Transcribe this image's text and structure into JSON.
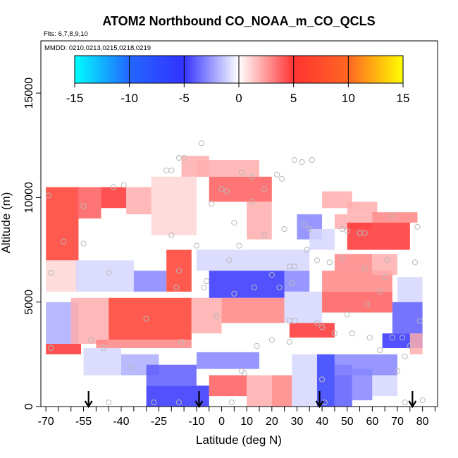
{
  "chart_data": {
    "type": "heatmap",
    "title": "ATOM2 Northbound CO_NOAA_m_CO_QCLS",
    "flights_label": "Flts: 6,7,8,9,10",
    "dates_label": "MMDD: 0210,0213,0215,0218,0219",
    "xlabel": "Latitude (deg N)",
    "ylabel": "Altitude (m)",
    "xlim": [
      -72,
      86
    ],
    "ylim": [
      0,
      17500
    ],
    "x_ticks": [
      -70,
      -55,
      -40,
      -25,
      -10,
      0,
      10,
      20,
      30,
      40,
      50,
      60,
      70,
      80
    ],
    "x_minor_ticks": [
      -65,
      -60,
      -50,
      -45,
      -35,
      -30,
      -20,
      -15,
      -5,
      5,
      15,
      25,
      35,
      45,
      55,
      65,
      75,
      85
    ],
    "y_ticks": [
      0,
      5000,
      10000,
      15000
    ],
    "colorbar": {
      "min": -15,
      "max": 15,
      "ticks": [
        -15,
        -10,
        -5,
        0,
        5,
        10,
        15
      ],
      "colors": [
        "#00ffff",
        "#2266ff",
        "#3333ff",
        "#ffffff",
        "#ff3333",
        "#ff6622",
        "#ffff00"
      ]
    },
    "arrow_latitudes": [
      -53,
      -9,
      39,
      76
    ],
    "observation_points": [
      [
        -69,
        10100
      ],
      [
        -68,
        6400
      ],
      [
        -68,
        2800
      ],
      [
        -63,
        7900
      ],
      [
        -55,
        7800
      ],
      [
        -55,
        9600
      ],
      [
        -52,
        3200
      ],
      [
        -47,
        2800
      ],
      [
        -45,
        6400
      ],
      [
        -43,
        10500
      ],
      [
        -39,
        10600
      ],
      [
        -45,
        200
      ],
      [
        -36,
        1900
      ],
      [
        -30,
        4200
      ],
      [
        -27,
        200
      ],
      [
        -22,
        11300
      ],
      [
        -20,
        11300
      ],
      [
        -20,
        8200
      ],
      [
        -17,
        11900
      ],
      [
        -15,
        11900
      ],
      [
        -18,
        5700
      ],
      [
        -17,
        6500
      ],
      [
        -16,
        3100
      ],
      [
        -17,
        200
      ],
      [
        -8,
        12600
      ],
      [
        -10,
        7700
      ],
      [
        -7,
        5700
      ],
      [
        -6,
        6000
      ],
      [
        -4,
        9700
      ],
      [
        -2,
        4300
      ],
      [
        0,
        10400
      ],
      [
        2,
        10300
      ],
      [
        3,
        7000
      ],
      [
        5,
        8800
      ],
      [
        5,
        5400
      ],
      [
        4,
        200
      ],
      [
        8,
        11200
      ],
      [
        7,
        7700
      ],
      [
        8,
        1700
      ],
      [
        9,
        1600
      ],
      [
        12,
        11000
      ],
      [
        12,
        9800
      ],
      [
        13,
        5700
      ],
      [
        14,
        2900
      ],
      [
        17,
        10400
      ],
      [
        17,
        8200
      ],
      [
        20,
        6300
      ],
      [
        20,
        3200
      ],
      [
        22,
        11100
      ],
      [
        23,
        5700
      ],
      [
        24,
        10900
      ],
      [
        25,
        8500
      ],
      [
        27,
        6700
      ],
      [
        28,
        5900
      ],
      [
        27,
        4100
      ],
      [
        27,
        3100
      ],
      [
        29,
        11800
      ],
      [
        29,
        6700
      ],
      [
        29,
        4100
      ],
      [
        32,
        11700
      ],
      [
        33,
        8700
      ],
      [
        35,
        8500
      ],
      [
        34,
        7500
      ],
      [
        36,
        11800
      ],
      [
        38,
        7000
      ],
      [
        38,
        4000
      ],
      [
        40,
        3800
      ],
      [
        40,
        1300
      ],
      [
        41,
        200
      ],
      [
        43,
        6900
      ],
      [
        45,
        3500
      ],
      [
        48,
        7100
      ],
      [
        48,
        8500
      ],
      [
        50,
        8400
      ],
      [
        50,
        4400
      ],
      [
        52,
        3500
      ],
      [
        55,
        8300
      ],
      [
        57,
        8300
      ],
      [
        57,
        6600
      ],
      [
        58,
        4900
      ],
      [
        59,
        3300
      ],
      [
        63,
        5500
      ],
      [
        63,
        2700
      ],
      [
        65,
        6200
      ],
      [
        66,
        7000
      ],
      [
        68,
        9100
      ],
      [
        68,
        3300
      ],
      [
        70,
        1700
      ],
      [
        72,
        3300
      ],
      [
        73,
        2400
      ],
      [
        73,
        200
      ],
      [
        75,
        2900
      ],
      [
        77,
        6900
      ],
      [
        78,
        8600
      ],
      [
        79,
        4100
      ],
      [
        80,
        300
      ]
    ],
    "cells": [
      {
        "x": [
          -70,
          -57
        ],
        "y": [
          7000,
          10500
        ],
        "v": 6
      },
      {
        "x": [
          -70,
          -57
        ],
        "y": [
          5500,
          7000
        ],
        "v": 1
      },
      {
        "x": [
          -70,
          -57
        ],
        "y": [
          3000,
          5000
        ],
        "v": -2
      },
      {
        "x": [
          -70,
          -56
        ],
        "y": [
          2500,
          3000
        ],
        "v": 5
      },
      {
        "x": [
          -58,
          -48
        ],
        "y": [
          9000,
          10500
        ],
        "v": 4
      },
      {
        "x": [
          -48,
          -38
        ],
        "y": [
          9500,
          10500
        ],
        "v": 5
      },
      {
        "x": [
          -38,
          -28
        ],
        "y": [
          9200,
          10500
        ],
        "v": 2
      },
      {
        "x": [
          -28,
          -10
        ],
        "y": [
          8200,
          11000
        ],
        "v": 1
      },
      {
        "x": [
          -16,
          -5
        ],
        "y": [
          11000,
          12000
        ],
        "v": 2
      },
      {
        "x": [
          -10,
          15
        ],
        "y": [
          11000,
          11800
        ],
        "v": 2
      },
      {
        "x": [
          -5,
          20
        ],
        "y": [
          9800,
          11000
        ],
        "v": 4
      },
      {
        "x": [
          10,
          20
        ],
        "y": [
          8000,
          9800
        ],
        "v": 2
      },
      {
        "x": [
          -58,
          -35
        ],
        "y": [
          5500,
          7000
        ],
        "v": -1
      },
      {
        "x": [
          -35,
          -22
        ],
        "y": [
          5500,
          6500
        ],
        "v": -3
      },
      {
        "x": [
          -22,
          -12
        ],
        "y": [
          5500,
          7500
        ],
        "v": 6
      },
      {
        "x": [
          -60,
          -45
        ],
        "y": [
          3000,
          5200
        ],
        "v": 2
      },
      {
        "x": [
          -45,
          -12
        ],
        "y": [
          3200,
          5200
        ],
        "v": 6
      },
      {
        "x": [
          -12,
          0
        ],
        "y": [
          3500,
          5200
        ],
        "v": 2
      },
      {
        "x": [
          -50,
          -12
        ],
        "y": [
          2800,
          3200
        ],
        "v": 3
      },
      {
        "x": [
          -55,
          -40
        ],
        "y": [
          1500,
          2800
        ],
        "v": -1
      },
      {
        "x": [
          -40,
          -25
        ],
        "y": [
          1500,
          2500
        ],
        "v": -2
      },
      {
        "x": [
          -10,
          35
        ],
        "y": [
          6500,
          7500
        ],
        "v": -1
      },
      {
        "x": [
          -5,
          25
        ],
        "y": [
          5200,
          6500
        ],
        "v": -5
      },
      {
        "x": [
          25,
          35
        ],
        "y": [
          5500,
          6500
        ],
        "v": -3
      },
      {
        "x": [
          0,
          25
        ],
        "y": [
          4000,
          5200
        ],
        "v": 3
      },
      {
        "x": [
          25,
          40
        ],
        "y": [
          4000,
          5500
        ],
        "v": -1
      },
      {
        "x": [
          30,
          40
        ],
        "y": [
          8000,
          9200
        ],
        "v": -3
      },
      {
        "x": [
          35,
          45
        ],
        "y": [
          7500,
          8500
        ],
        "v": -1
      },
      {
        "x": [
          27,
          45
        ],
        "y": [
          3300,
          4000
        ],
        "v": 5
      },
      {
        "x": [
          -30,
          -10
        ],
        "y": [
          1000,
          2000
        ],
        "v": -4
      },
      {
        "x": [
          -10,
          15
        ],
        "y": [
          1800,
          2600
        ],
        "v": -3
      },
      {
        "x": [
          -30,
          -5
        ],
        "y": [
          0,
          1000
        ],
        "v": -5
      },
      {
        "x": [
          -5,
          10
        ],
        "y": [
          500,
          1500
        ],
        "v": 4
      },
      {
        "x": [
          10,
          20
        ],
        "y": [
          0,
          1500
        ],
        "v": 2
      },
      {
        "x": [
          20,
          28
        ],
        "y": [
          0,
          1500
        ],
        "v": 3
      },
      {
        "x": [
          28,
          38
        ],
        "y": [
          0,
          2500
        ],
        "v": -1
      },
      {
        "x": [
          38,
          45
        ],
        "y": [
          0,
          2500
        ],
        "v": -6
      },
      {
        "x": [
          45,
          52
        ],
        "y": [
          0,
          2000
        ],
        "v": -4
      },
      {
        "x": [
          52,
          60
        ],
        "y": [
          300,
          1800
        ],
        "v": -3
      },
      {
        "x": [
          60,
          70
        ],
        "y": [
          500,
          1500
        ],
        "v": -1
      },
      {
        "x": [
          45,
          70
        ],
        "y": [
          1500,
          2500
        ],
        "v": -3
      },
      {
        "x": [
          40,
          68
        ],
        "y": [
          5500,
          6500
        ],
        "v": 3
      },
      {
        "x": [
          40,
          68
        ],
        "y": [
          4500,
          5500
        ],
        "v": 4
      },
      {
        "x": [
          45,
          60
        ],
        "y": [
          6500,
          7300
        ],
        "v": 3
      },
      {
        "x": [
          60,
          70
        ],
        "y": [
          6300,
          7300
        ],
        "v": 2
      },
      {
        "x": [
          45,
          60
        ],
        "y": [
          8500,
          9200
        ],
        "v": 2
      },
      {
        "x": [
          50,
          75
        ],
        "y": [
          7500,
          8800
        ],
        "v": 5
      },
      {
        "x": [
          50,
          62
        ],
        "y": [
          9200,
          9800
        ],
        "v": 2
      },
      {
        "x": [
          40,
          52
        ],
        "y": [
          9500,
          10300
        ],
        "v": 2
      },
      {
        "x": [
          60,
          78
        ],
        "y": [
          8800,
          9300
        ],
        "v": 3
      },
      {
        "x": [
          68,
          80
        ],
        "y": [
          3500,
          5000
        ],
        "v": -4
      },
      {
        "x": [
          64,
          80
        ],
        "y": [
          2800,
          3500
        ],
        "v": -5
      },
      {
        "x": [
          75,
          80
        ],
        "y": [
          2500,
          3500
        ],
        "v": 2
      },
      {
        "x": [
          70,
          80
        ],
        "y": [
          5000,
          6200
        ],
        "v": -1
      }
    ]
  }
}
